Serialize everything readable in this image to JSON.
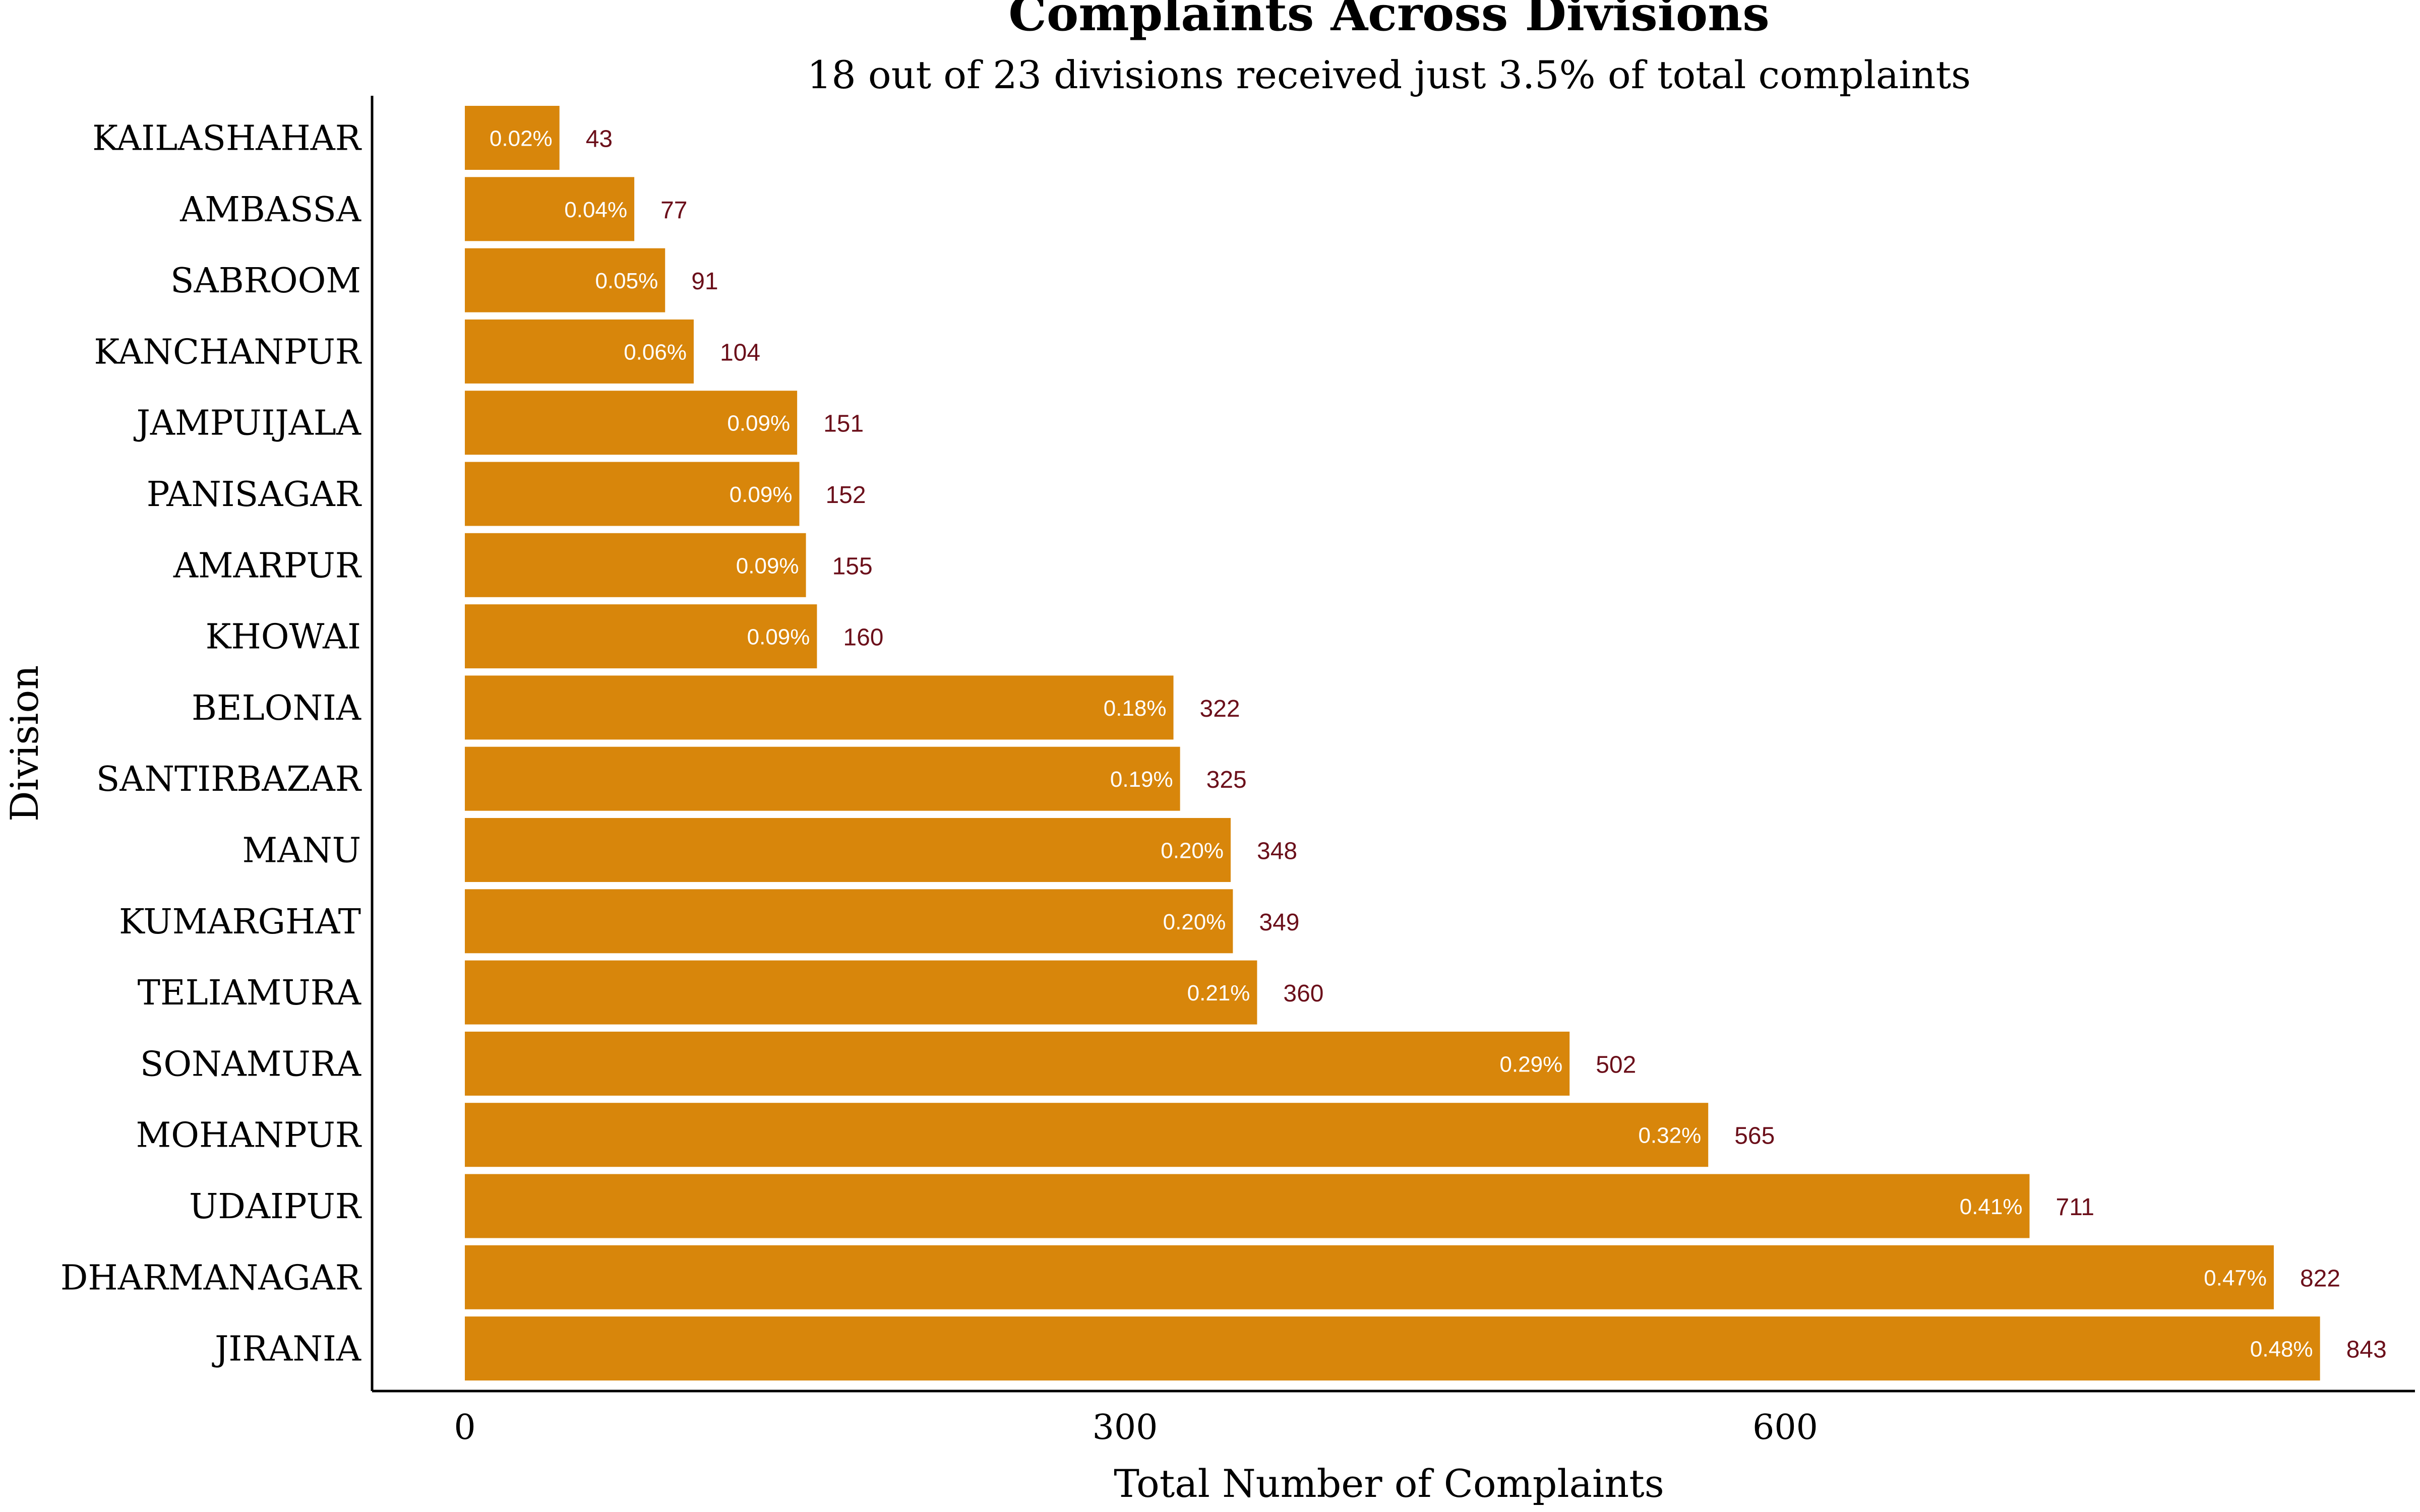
{
  "chart_data": {
    "type": "bar",
    "orientation": "horizontal",
    "title": "Complaints Across Divisions",
    "subtitle": "18 out of 23 divisions received just 3.5% of total complaints",
    "xlabel": "Total Number of Complaints",
    "ylabel": "Division",
    "xlim": [
      0,
      880
    ],
    "xticks": [
      0,
      300,
      600
    ],
    "xtick_labels": [
      "0",
      "300",
      "600"
    ],
    "grid": false,
    "legend": "none",
    "bar_color": "#d8860b",
    "value_label_color": "#6b0f1a",
    "percent_label_color": "#ffffff",
    "categories": [
      "KAILASHAHAR",
      "AMBASSA",
      "SABROOM",
      "KANCHANPUR",
      "JAMPUIJALA",
      "PANISAGAR",
      "AMARPUR",
      "KHOWAI",
      "BELONIA",
      "SANTIRBAZAR",
      "MANU",
      "KUMARGHAT",
      "TELIAMURA",
      "SONAMURA",
      "MOHANPUR",
      "UDAIPUR",
      "DHARMANAGAR",
      "JIRANIA"
    ],
    "values": [
      43,
      77,
      91,
      104,
      151,
      152,
      155,
      160,
      322,
      325,
      348,
      349,
      360,
      502,
      565,
      711,
      822,
      843
    ],
    "value_labels": [
      "43",
      "77",
      "91",
      "104",
      "151",
      "152",
      "155",
      "160",
      "322",
      "325",
      "348",
      "349",
      "360",
      "502",
      "565",
      "711",
      "822",
      "843"
    ],
    "percent_labels": [
      "0.02%",
      "0.04%",
      "0.05%",
      "0.06%",
      "0.09%",
      "0.09%",
      "0.09%",
      "0.09%",
      "0.18%",
      "0.19%",
      "0.20%",
      "0.20%",
      "0.21%",
      "0.29%",
      "0.32%",
      "0.41%",
      "0.47%",
      "0.48%"
    ]
  }
}
